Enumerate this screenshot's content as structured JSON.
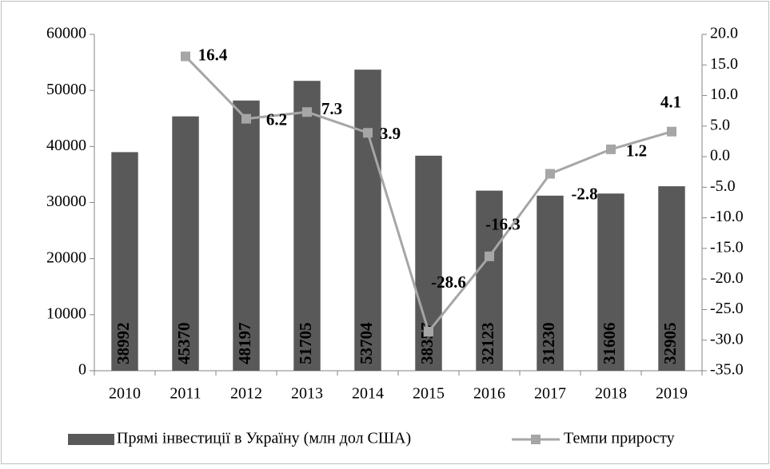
{
  "chart_data": {
    "type": "bar",
    "categories": [
      "2010",
      "2011",
      "2012",
      "2013",
      "2014",
      "2015",
      "2016",
      "2017",
      "2018",
      "2019"
    ],
    "series": [
      {
        "name": "Прямі інвестиції в Україну (млн дол США)",
        "type": "bar",
        "color": "#595959",
        "values": [
          38992,
          45370,
          48197,
          51705,
          53704,
          38357,
          32123,
          31230,
          31606,
          32905
        ]
      },
      {
        "name": "Темпи приросту",
        "type": "line",
        "axis": "y2",
        "color": "#a6a6a6",
        "values": [
          null,
          16.4,
          6.2,
          7.3,
          3.9,
          -28.6,
          -16.3,
          -2.8,
          1.2,
          4.1
        ]
      }
    ],
    "ylim": [
      0,
      60000
    ],
    "yticks": [
      0,
      10000,
      20000,
      30000,
      40000,
      50000,
      60000
    ],
    "y2lim": [
      -35,
      20
    ],
    "y2ticks": [
      {
        "value": -35,
        "label": "-35.0"
      },
      {
        "value": -30,
        "label": "-30.0"
      },
      {
        "value": -25,
        "label": "-25.0"
      },
      {
        "value": -20,
        "label": "-20.0"
      },
      {
        "value": -15,
        "label": "-15.0"
      },
      {
        "value": -10,
        "label": "-10.0"
      },
      {
        "value": -5,
        "label": "-5.0"
      },
      {
        "value": 0,
        "label": "0.0"
      },
      {
        "value": 5,
        "label": "5.0"
      },
      {
        "value": 10,
        "label": "10.0"
      },
      {
        "value": 15,
        "label": "15.0"
      },
      {
        "value": 20,
        "label": "20.0"
      }
    ],
    "grid": false,
    "legend": "bottom"
  }
}
